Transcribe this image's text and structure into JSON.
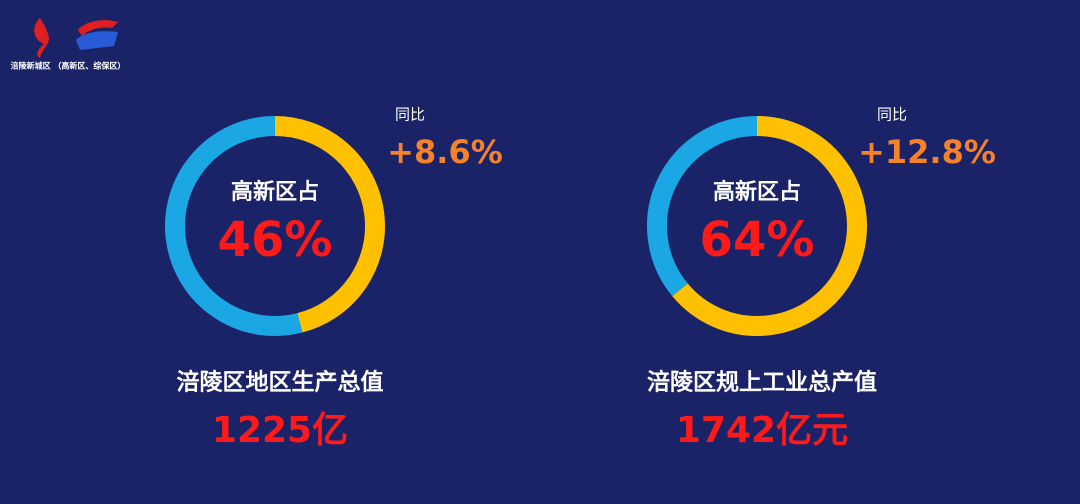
{
  "header": {
    "org": "涪陵新城区 （高新区、综保区）"
  },
  "chart_data": [
    {
      "type": "donut",
      "colors": [
        "#FFC000",
        "#1AA7E4"
      ],
      "values": [
        46,
        54
      ],
      "value_labels": [
        "46%",
        null
      ],
      "center_label": "高新区占",
      "yoy_label": "同比",
      "yoy": "+8.6%",
      "title": "涪陵区地区生产总值",
      "total": "1225亿"
    },
    {
      "type": "donut",
      "colors": [
        "#FFC000",
        "#1AA7E4"
      ],
      "values": [
        64,
        36
      ],
      "value_labels": [
        "64%",
        null
      ],
      "center_label": "高新区占",
      "yoy_label": "同比",
      "yoy": "+12.8%",
      "title": "涪陵区规上工业总产值",
      "total": "1742亿元"
    }
  ]
}
